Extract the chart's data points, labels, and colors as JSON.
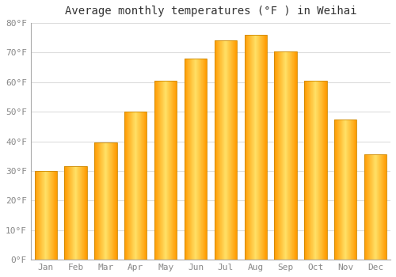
{
  "title": "Average monthly temperatures (°F ) in Weihai",
  "months": [
    "Jan",
    "Feb",
    "Mar",
    "Apr",
    "May",
    "Jun",
    "Jul",
    "Aug",
    "Sep",
    "Oct",
    "Nov",
    "Dec"
  ],
  "temperatures": [
    30,
    31.5,
    39.5,
    50,
    60.5,
    68,
    74,
    76,
    70.5,
    60.5,
    47.5,
    35.5
  ],
  "bar_color_left": "#FFA500",
  "bar_color_center": "#FFD966",
  "bar_color_right": "#FFA500",
  "ylim": [
    0,
    80
  ],
  "yticks": [
    0,
    10,
    20,
    30,
    40,
    50,
    60,
    70,
    80
  ],
  "ytick_labels": [
    "0°F",
    "10°F",
    "20°F",
    "30°F",
    "40°F",
    "50°F",
    "60°F",
    "70°F",
    "80°F"
  ],
  "background_color": "#FFFFFF",
  "plot_bg_color": "#FFFFFF",
  "grid_color": "#DDDDDD",
  "title_fontsize": 10,
  "tick_fontsize": 8,
  "tick_color": "#888888",
  "bar_edge_color": "#CC8800",
  "bar_width": 0.75
}
